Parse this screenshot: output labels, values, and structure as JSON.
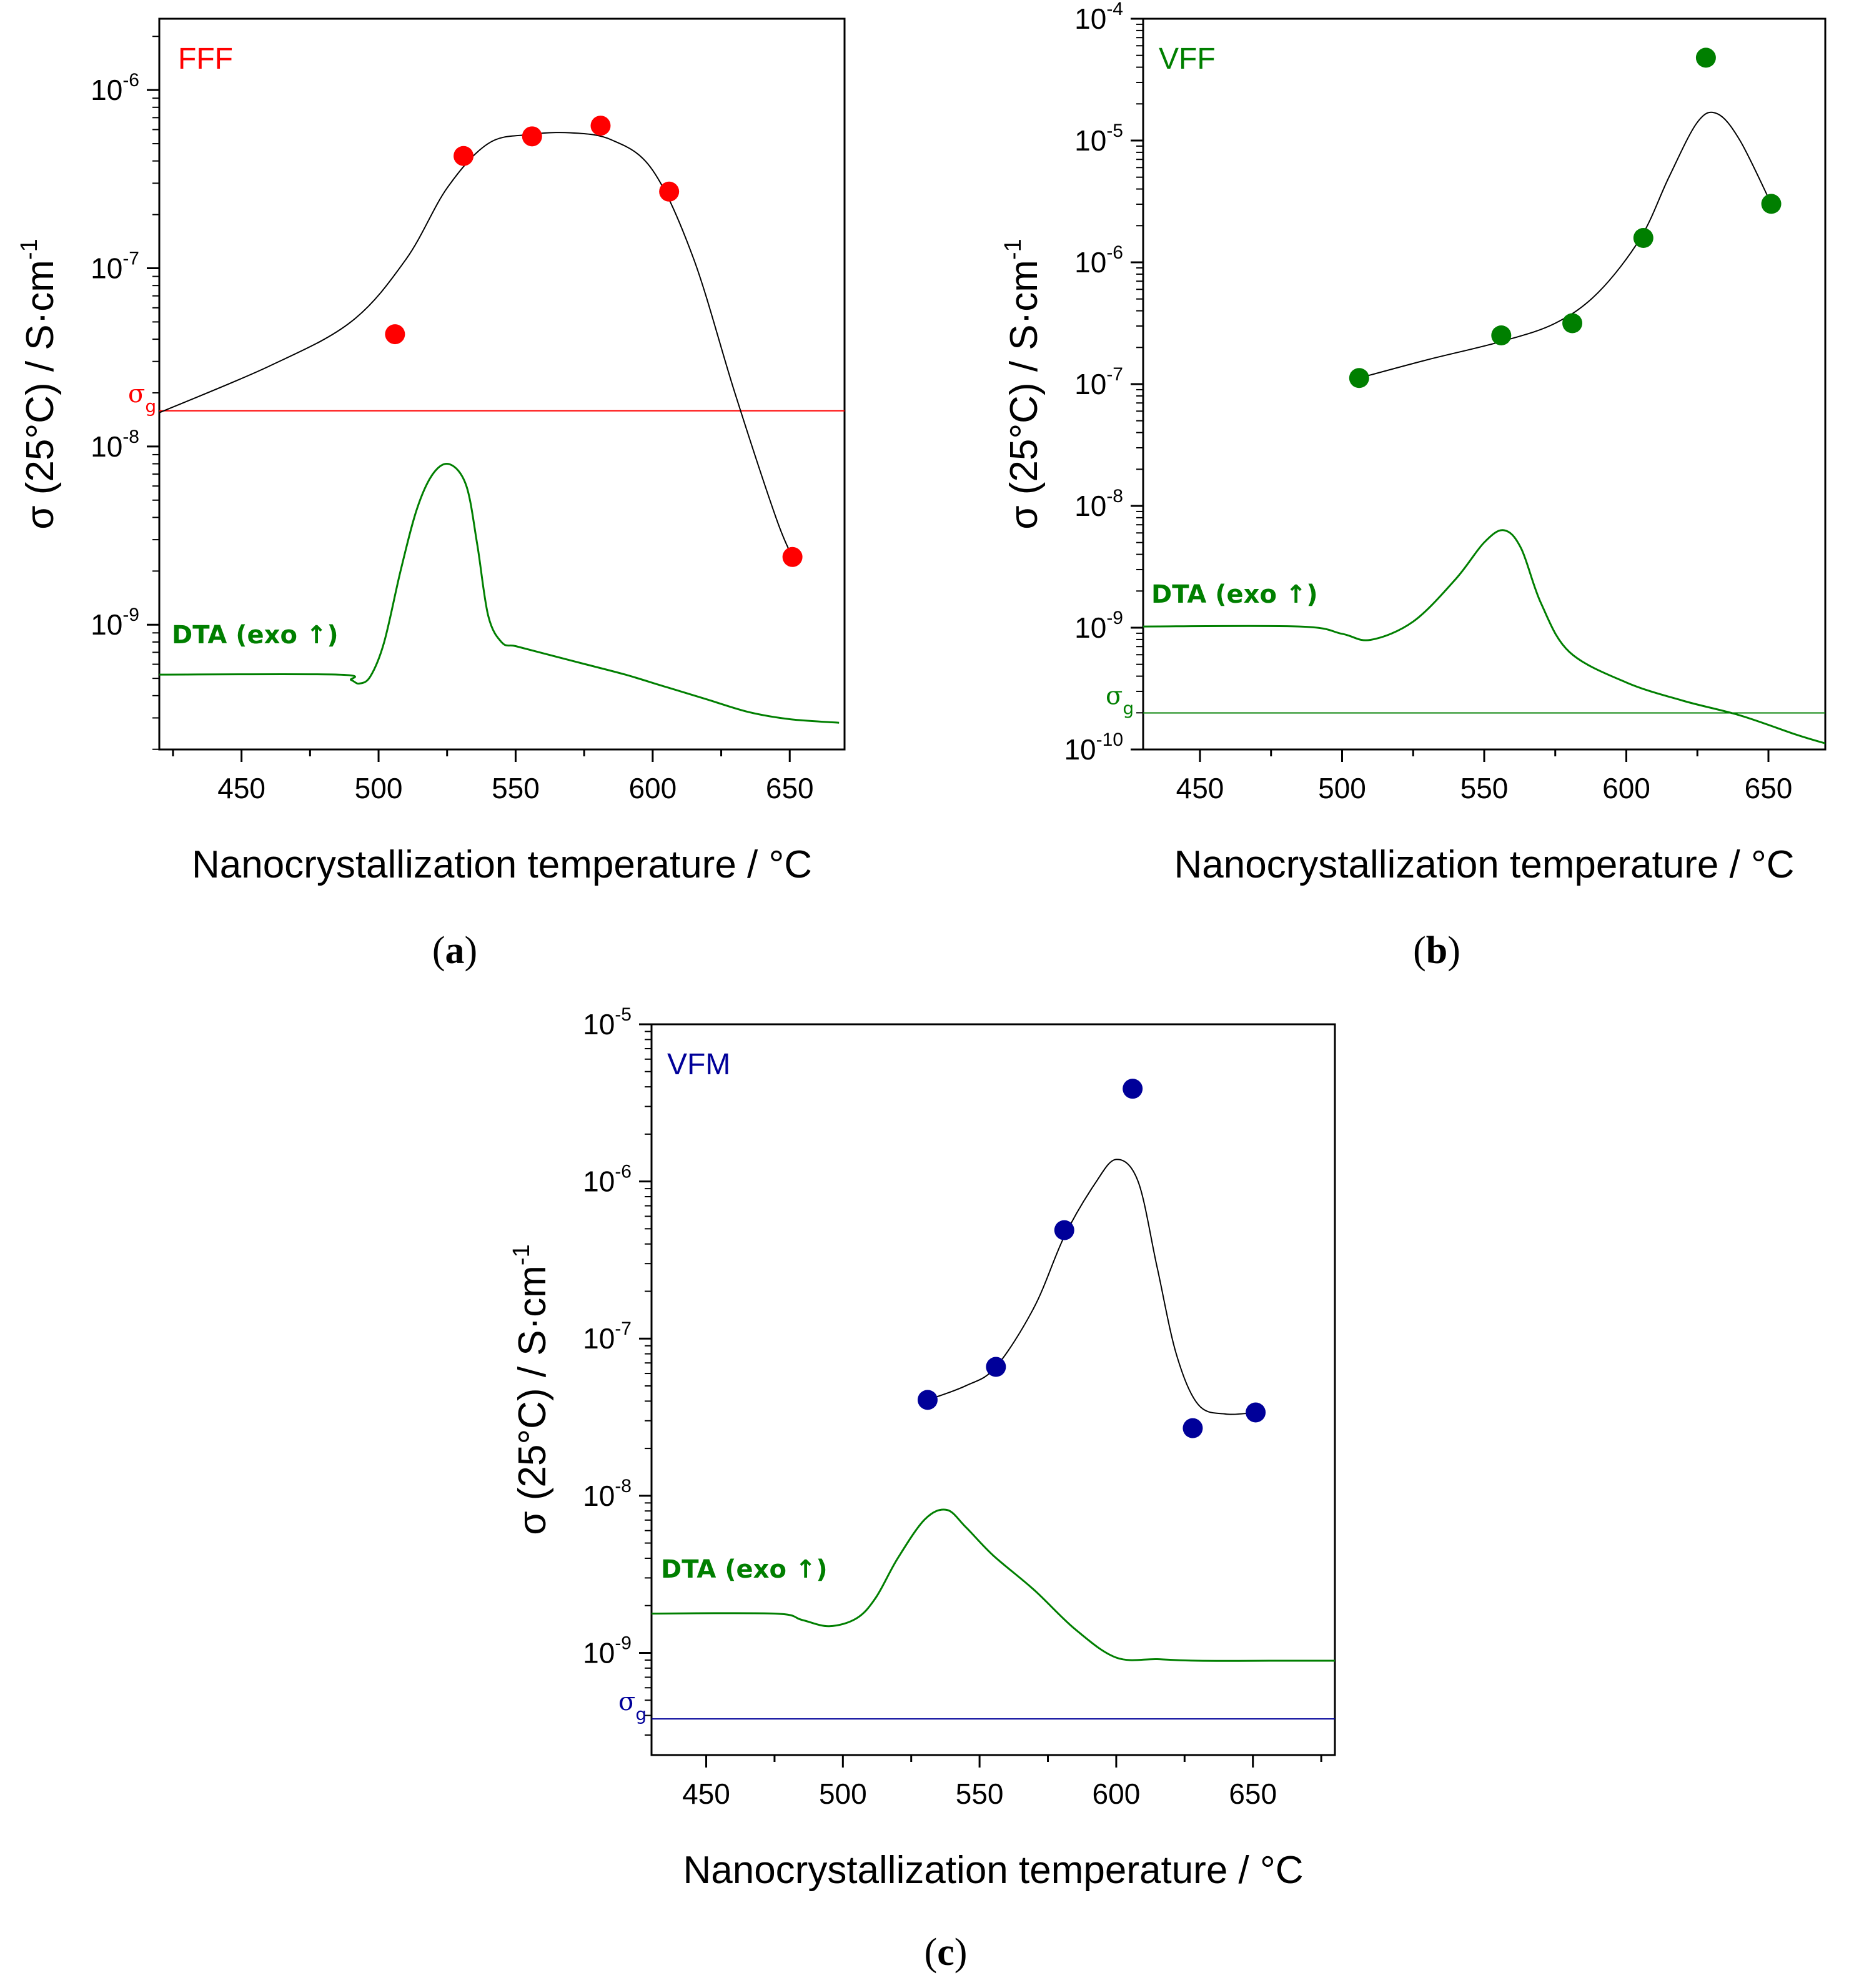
{
  "figure": {
    "panel_letters": {
      "a": "a",
      "b": "b",
      "c": "c"
    },
    "paren_open": "(",
    "paren_close": ")"
  },
  "chart_data": [
    {
      "id": "a",
      "type": "scatter",
      "series_label": "FFF",
      "series_color": "#ff0000",
      "xlabel": "Nanocrystallization temperature / °C",
      "ylabel": "σ (25°C) / S·cm",
      "ylabel_exponent": "-1",
      "xlim": [
        420,
        670
      ],
      "ylim_log10": [
        -9.7,
        -5.6
      ],
      "xticks": [
        450,
        500,
        550,
        600,
        650
      ],
      "yticks": [
        {
          "base": "10",
          "exp": "-9",
          "value": -9
        },
        {
          "base": "10",
          "exp": "-8",
          "value": -8
        },
        {
          "base": "10",
          "exp": "-7",
          "value": -7
        },
        {
          "base": "10",
          "exp": "-6",
          "value": -6
        }
      ],
      "points": {
        "x": [
          506,
          531,
          556,
          581,
          606,
          651
        ],
        "log10_y": [
          -7.37,
          -6.37,
          -6.26,
          -6.2,
          -6.57,
          -8.62
        ]
      },
      "fit": {
        "x": [
          420,
          460,
          490,
          510,
          525,
          540,
          555,
          570,
          585,
          600,
          615,
          630,
          645,
          651
        ],
        "log10_y": [
          -7.81,
          -7.55,
          -7.3,
          -6.95,
          -6.55,
          -6.3,
          -6.25,
          -6.24,
          -6.28,
          -6.45,
          -6.95,
          -7.7,
          -8.4,
          -8.62
        ]
      },
      "sigma_g": {
        "label": "σ",
        "subscript": "g",
        "log10_y": -7.8,
        "color": "#ff0000"
      },
      "dta": {
        "label": "DTA (exo ↑)",
        "color": "#007f00",
        "x": [
          420,
          485,
          490,
          493,
          497,
          502,
          508,
          514,
          520,
          526,
          532,
          536,
          540,
          545,
          550,
          560,
          575,
          590,
          605,
          620,
          635,
          650,
          668
        ],
        "log10_y": [
          -9.28,
          -9.28,
          -9.31,
          -9.33,
          -9.29,
          -9.1,
          -8.7,
          -8.35,
          -8.15,
          -8.1,
          -8.22,
          -8.55,
          -8.95,
          -9.1,
          -9.12,
          -9.16,
          -9.22,
          -9.28,
          -9.35,
          -9.42,
          -9.49,
          -9.53,
          -9.55
        ]
      }
    },
    {
      "id": "b",
      "type": "scatter",
      "series_label": "VFF",
      "series_color": "#007f00",
      "xlabel": "Nanocrystallization temperature / °C",
      "ylabel": "σ (25°C) / S·cm",
      "ylabel_exponent": "-1",
      "xlim": [
        430,
        670
      ],
      "ylim_log10": [
        -10,
        -4
      ],
      "xticks": [
        450,
        500,
        550,
        600,
        650
      ],
      "yticks": [
        {
          "base": "10",
          "exp": "-10",
          "value": -10
        },
        {
          "base": "10",
          "exp": "-9",
          "value": -9
        },
        {
          "base": "10",
          "exp": "-8",
          "value": -8
        },
        {
          "base": "10",
          "exp": "-7",
          "value": -7
        },
        {
          "base": "10",
          "exp": "-6",
          "value": -6
        },
        {
          "base": "10",
          "exp": "-5",
          "value": -5
        },
        {
          "base": "10",
          "exp": "-4",
          "value": -4
        }
      ],
      "points": {
        "x": [
          506,
          556,
          581,
          606,
          628,
          651
        ],
        "log10_y": [
          -6.95,
          -6.6,
          -6.5,
          -5.8,
          -4.32,
          -5.52
        ]
      },
      "fit": {
        "x": [
          506,
          530,
          556,
          575,
          590,
          605,
          615,
          625,
          632,
          640,
          651
        ],
        "log10_y": [
          -6.95,
          -6.8,
          -6.65,
          -6.5,
          -6.25,
          -5.8,
          -5.3,
          -4.85,
          -4.78,
          -5.0,
          -5.52
        ]
      },
      "sigma_g": {
        "label": "σ",
        "subscript": "g",
        "log10_y": -9.7,
        "color": "#007f00"
      },
      "dta": {
        "label": "DTA (exo ↑)",
        "color": "#007f00",
        "x": [
          430,
          485,
          500,
          510,
          525,
          540,
          550,
          557,
          563,
          570,
          580,
          600,
          620,
          640,
          660,
          670
        ],
        "log10_y": [
          -8.99,
          -8.99,
          -9.05,
          -9.1,
          -8.95,
          -8.6,
          -8.3,
          -8.2,
          -8.35,
          -8.8,
          -9.2,
          -9.45,
          -9.6,
          -9.72,
          -9.88,
          -9.95
        ]
      }
    },
    {
      "id": "c",
      "type": "scatter",
      "series_label": "VFM",
      "series_color": "#000099",
      "xlabel": "Nanocrystallization temperature / °C",
      "ylabel": "σ (25°C) / S·cm",
      "ylabel_exponent": "-1",
      "xlim": [
        430,
        680
      ],
      "ylim_log10": [
        -9.65,
        -5
      ],
      "xticks": [
        450,
        500,
        550,
        600,
        650
      ],
      "yticks": [
        {
          "base": "10",
          "exp": "-9",
          "value": -9
        },
        {
          "base": "10",
          "exp": "-8",
          "value": -8
        },
        {
          "base": "10",
          "exp": "-7",
          "value": -7
        },
        {
          "base": "10",
          "exp": "-6",
          "value": -6
        },
        {
          "base": "10",
          "exp": "-5",
          "value": -5
        }
      ],
      "points": {
        "x": [
          531,
          556,
          581,
          606,
          628,
          651
        ],
        "log10_y": [
          -7.39,
          -7.18,
          -6.31,
          -5.41,
          -7.57,
          -7.47
        ]
      },
      "fit": {
        "x": [
          531,
          545,
          556,
          570,
          581,
          592,
          600,
          608,
          615,
          622,
          630,
          640,
          651
        ],
        "log10_y": [
          -7.39,
          -7.3,
          -7.18,
          -6.8,
          -6.35,
          -6.02,
          -5.86,
          -6.0,
          -6.55,
          -7.1,
          -7.42,
          -7.48,
          -7.47
        ]
      },
      "sigma_g": {
        "label": "σ",
        "subscript": "g",
        "log10_y": -9.42,
        "color": "#000099"
      },
      "dta": {
        "label": "DTA (exo ↑)",
        "color": "#007f00",
        "x": [
          430,
          475,
          485,
          495,
          505,
          512,
          520,
          530,
          538,
          545,
          555,
          570,
          585,
          600,
          615,
          630,
          660,
          680
        ],
        "log10_y": [
          -8.75,
          -8.75,
          -8.79,
          -8.83,
          -8.78,
          -8.65,
          -8.4,
          -8.15,
          -8.09,
          -8.2,
          -8.38,
          -8.6,
          -8.85,
          -9.03,
          -9.04,
          -9.05,
          -9.05,
          -9.05
        ]
      }
    }
  ]
}
